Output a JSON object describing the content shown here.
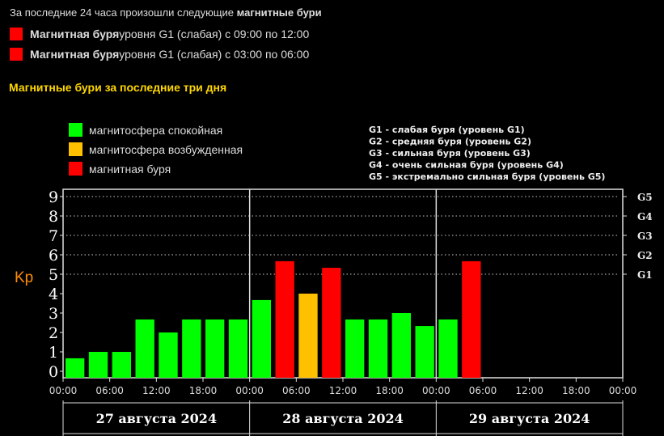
{
  "intro": {
    "text": "За последние 24 часа произошли следующие ",
    "bold": "магнитные бури"
  },
  "storms": [
    {
      "bold": "Магнитная буря",
      "text": " уровня G1 (слабая) с 09:00 по 12:00"
    },
    {
      "bold": "Магнитная буря",
      "text": " уровня G1 (слабая) с 03:00 по 06:00"
    }
  ],
  "section_title": "Магнитные бури за последние три дня",
  "colors": {
    "quiet": "#00ff00",
    "excited": "#ffc000",
    "storm": "#ff0000",
    "storm_marker": "#ff0000",
    "title": "#ffd700",
    "kp_label": "#ff8c00"
  },
  "chart_data": {
    "type": "bar",
    "ylabel": "Kp",
    "ylim": [
      0,
      9
    ],
    "yticks": [
      "0",
      "1",
      "2",
      "3",
      "4",
      "5",
      "6",
      "7",
      "8",
      "9"
    ],
    "g_levels": [
      {
        "label": "G1",
        "kp": 5
      },
      {
        "label": "G2",
        "kp": 6
      },
      {
        "label": "G3",
        "kp": 7
      },
      {
        "label": "G4",
        "kp": 8
      },
      {
        "label": "G5",
        "kp": 9
      }
    ],
    "legend": [
      {
        "label": "магнитосфера спокойная",
        "color": "#00ff00"
      },
      {
        "label": "магнитосфера возбужденная",
        "color": "#ffc000"
      },
      {
        "label": "магнитная буря",
        "color": "#ff0000"
      }
    ],
    "g_legend": [
      "G1 - слабая буря (уровень G1)",
      "G2 - средняя буря (уровень G2)",
      "G3 - сильная буря (уровень G3)",
      "G4 - очень сильная буря (уровень G4)",
      "G5 - экстремально сильная буря (уровень G5)"
    ],
    "days": [
      "27 августа 2024",
      "28 августа 2024",
      "29 августа 2024"
    ],
    "xticks": [
      "00:00",
      "06:00",
      "12:00",
      "18:00",
      "00:00",
      "06:00",
      "12:00",
      "18:00",
      "00:00",
      "06:00",
      "12:00",
      "18:00",
      "00:00"
    ],
    "grid": true,
    "values": [
      0.67,
      1,
      1,
      2.67,
      2,
      2.67,
      2.67,
      2.67,
      3.67,
      5.67,
      4,
      5.33,
      2.67,
      2.67,
      3,
      2.33,
      2.67,
      5.67
    ]
  }
}
